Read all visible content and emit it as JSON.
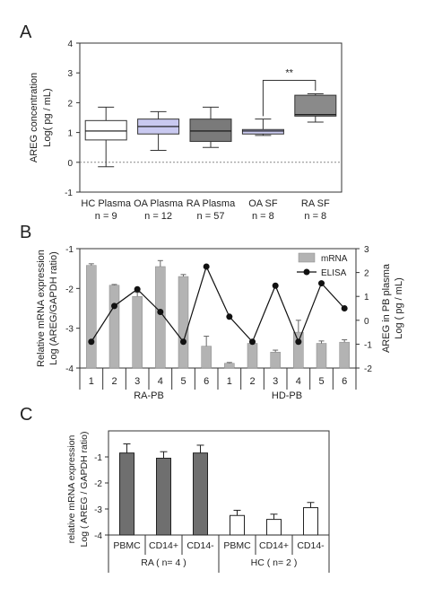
{
  "colors": {
    "axis": "#333333",
    "hc_box": "#ffffff",
    "oa_box": "#c9c9f0",
    "ra_box": "#7a7a7a",
    "oasf_box": "#c9c9f0",
    "rasf_box": "#8a8a8a",
    "mrna_bar": "#b3b3b3",
    "rc_bar": "#6f6f6f",
    "hc_bar": "#ffffff"
  },
  "panels": {
    "A": {
      "letter": "A"
    },
    "B": {
      "letter": "B"
    },
    "C": {
      "letter": "C"
    }
  },
  "chart_data": [
    {
      "panel": "A",
      "type": "box",
      "ylabel": "AREG concentration",
      "ylabel2": "Log( pg / mL)",
      "ylim": [
        -1,
        4
      ],
      "yticks": [
        "-1",
        "0",
        "1",
        "2",
        "3",
        "4"
      ],
      "reference_line": 0,
      "significance": {
        "from": 3,
        "to": 4,
        "label": "**"
      },
      "groups": [
        {
          "label": "HC Plasma",
          "n": "n = 9",
          "min": -0.15,
          "q1": 0.75,
          "median": 1.05,
          "q3": 1.4,
          "max": 1.85,
          "color": "#ffffff"
        },
        {
          "label": "OA Plasma",
          "n": "n = 12",
          "min": 0.4,
          "q1": 0.95,
          "median": 1.2,
          "q3": 1.45,
          "max": 1.7,
          "color": "#c9c9f0"
        },
        {
          "label": "RA Plasma",
          "n": "n = 57",
          "min": 0.5,
          "q1": 0.7,
          "median": 1.05,
          "q3": 1.45,
          "max": 1.85,
          "color": "#7a7a7a"
        },
        {
          "label": "OA SF",
          "n": "n = 8",
          "min": 0.9,
          "q1": 0.95,
          "median": 1.05,
          "q3": 1.1,
          "max": 1.45,
          "color": "#c9c9f0"
        },
        {
          "label": "RA SF",
          "n": "n = 8",
          "min": 1.35,
          "q1": 1.55,
          "median": 1.6,
          "q3": 2.25,
          "max": 2.3,
          "color": "#8a8a8a"
        }
      ]
    },
    {
      "panel": "B",
      "type": "bar+line",
      "ylabel": "Relative mRNA expression",
      "ylabel2": "Log (AREG/GAPDH ratio)",
      "y2label": "AREG in PB plasma",
      "y2label2": "Log ( pg / mL)",
      "ylim": [
        -4,
        -1
      ],
      "yticks": [
        "-1",
        "-2",
        "-3",
        "-4"
      ],
      "y2lim": [
        -2,
        3
      ],
      "y2ticks": [
        "3",
        "2",
        "1",
        "0",
        "-1",
        "-2"
      ],
      "categories": [
        "1",
        "2",
        "3",
        "4",
        "5",
        "6",
        "1",
        "2",
        "3",
        "4",
        "5",
        "6"
      ],
      "groups": [
        {
          "label": "RA-PB",
          "span": [
            0,
            5
          ]
        },
        {
          "label": "HD-PB",
          "span": [
            6,
            11
          ]
        }
      ],
      "legend": {
        "bar": "mRNA",
        "line": "ELISA",
        "placement": "top-right"
      },
      "series": [
        {
          "name": "mRNA",
          "type": "bar",
          "values": [
            -1.42,
            -1.92,
            -2.2,
            -1.45,
            -1.7,
            -3.45,
            -3.88,
            -3.38,
            -3.6,
            -3.1,
            -3.38,
            -3.35
          ],
          "errors": [
            0.04,
            0.02,
            0.1,
            0.15,
            0.05,
            0.25,
            0.02,
            0.05,
            0.05,
            0.3,
            0.06,
            0.06
          ]
        },
        {
          "name": "ELISA",
          "type": "line",
          "axis": "right",
          "values": [
            -0.9,
            0.6,
            1.3,
            0.35,
            -0.9,
            2.25,
            0.15,
            -0.9,
            1.45,
            -0.9,
            1.55,
            0.5
          ]
        }
      ]
    },
    {
      "panel": "C",
      "type": "bar",
      "ylabel": "relative mRNA expression",
      "ylabel2": "Log ( AREG / GAPDH ratio)",
      "ylim": [
        -4,
        0
      ],
      "yticks": [
        "-1",
        "-2",
        "-3",
        "-4"
      ],
      "categories": [
        "PBMC",
        "CD14+",
        "CD14-",
        "PBMC",
        "CD14+",
        "CD14-"
      ],
      "groups": [
        {
          "label": "RA ( n= 4 )",
          "span": [
            0,
            2
          ]
        },
        {
          "label": "HC ( n= 2 )",
          "span": [
            3,
            5
          ]
        }
      ],
      "series": [
        {
          "values": [
            -0.85,
            -1.05,
            -0.85,
            -3.25,
            -3.4,
            -2.95
          ],
          "errors": [
            0.35,
            0.25,
            0.3,
            0.2,
            0.2,
            0.2
          ],
          "colors": [
            "#6f6f6f",
            "#6f6f6f",
            "#6f6f6f",
            "#ffffff",
            "#ffffff",
            "#ffffff"
          ]
        }
      ]
    }
  ]
}
